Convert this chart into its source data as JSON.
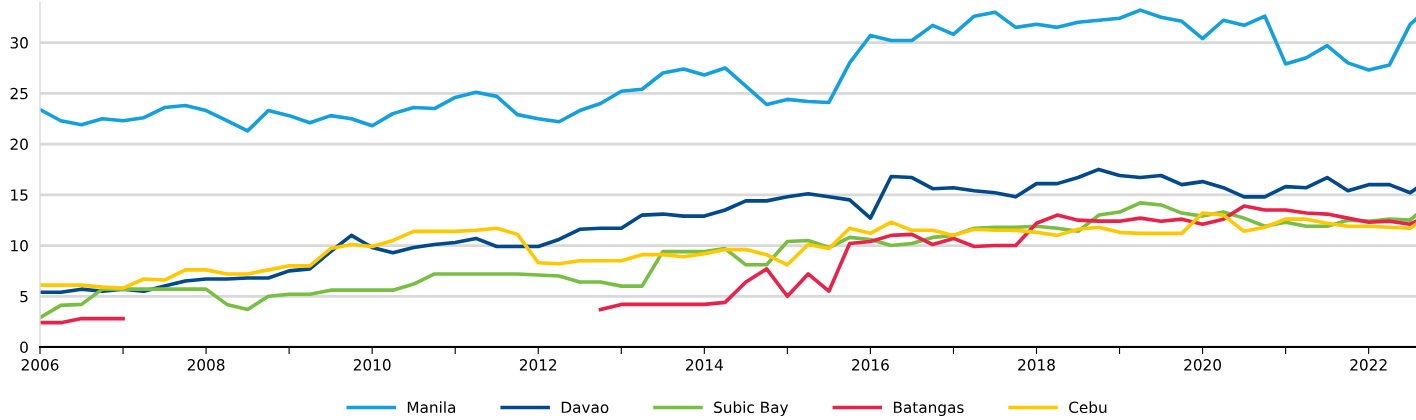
{
  "chart_data": {
    "type": "line",
    "x": [
      2006,
      2006.25,
      2006.5,
      2006.75,
      2007,
      2007.25,
      2007.5,
      2007.75,
      2008,
      2008.25,
      2008.5,
      2008.75,
      2009,
      2009.25,
      2009.5,
      2009.75,
      2010,
      2010.25,
      2010.5,
      2010.75,
      2011,
      2011.25,
      2011.5,
      2011.75,
      2012,
      2012.25,
      2012.5,
      2012.75,
      2013,
      2013.25,
      2013.5,
      2013.75,
      2014,
      2014.25,
      2014.5,
      2014.75,
      2015,
      2015.25,
      2015.5,
      2015.75,
      2016,
      2016.25,
      2016.5,
      2016.75,
      2017,
      2017.25,
      2017.5,
      2017.75,
      2018,
      2018.25,
      2018.5,
      2018.75,
      2019,
      2019.25,
      2019.5,
      2019.75,
      2020,
      2020.25,
      2020.5,
      2020.75,
      2021,
      2021.25,
      2021.5,
      2021.75,
      2022,
      2022.25,
      2022.5,
      2022.57
    ],
    "series": [
      {
        "name": "Manila",
        "color": "#14a0dc",
        "values": [
          23.4,
          22.3,
          21.9,
          22.5,
          22.3,
          22.6,
          23.6,
          23.8,
          23.3,
          22.3,
          21.3,
          23.3,
          22.8,
          22.1,
          22.8,
          22.5,
          21.8,
          23.0,
          23.6,
          23.5,
          24.6,
          25.1,
          24.7,
          22.9,
          22.5,
          22.2,
          23.3,
          24.0,
          25.2,
          25.4,
          27.0,
          27.4,
          26.8,
          27.5,
          25.7,
          23.9,
          24.4,
          24.2,
          24.1,
          28.0,
          30.7,
          30.2,
          30.2,
          31.7,
          30.8,
          32.6,
          33.0,
          31.5,
          31.8,
          31.5,
          32.0,
          32.2,
          32.4,
          33.2,
          32.5,
          32.1,
          30.4,
          32.2,
          31.7,
          32.6,
          27.9,
          28.5,
          29.7,
          28.0,
          27.3,
          27.8,
          31.8,
          32.3
        ]
      },
      {
        "name": "Davao",
        "color": "#00498c",
        "values": [
          5.4,
          5.4,
          5.7,
          5.5,
          5.7,
          5.5,
          6.0,
          6.5,
          6.7,
          6.7,
          6.8,
          6.8,
          7.5,
          7.7,
          9.4,
          11.0,
          9.8,
          9.3,
          9.8,
          10.1,
          10.3,
          10.7,
          9.9,
          9.9,
          9.9,
          10.6,
          11.6,
          11.7,
          11.7,
          13.0,
          13.1,
          12.9,
          12.9,
          13.5,
          14.4,
          14.4,
          14.8,
          15.1,
          14.8,
          14.5,
          12.7,
          16.8,
          16.7,
          15.6,
          15.7,
          15.4,
          15.2,
          14.8,
          16.1,
          16.1,
          16.7,
          17.5,
          16.9,
          16.7,
          16.9,
          16.0,
          16.3,
          15.7,
          14.8,
          14.8,
          15.8,
          15.7,
          16.7,
          15.4,
          16.0,
          16.0,
          15.2,
          15.6
        ]
      },
      {
        "name": "Subic Bay",
        "color": "#78be43",
        "values": [
          2.9,
          4.1,
          4.2,
          5.7,
          5.7,
          5.7,
          5.7,
          5.7,
          5.7,
          4.2,
          3.7,
          5.0,
          5.2,
          5.2,
          5.6,
          5.6,
          5.6,
          5.6,
          6.2,
          7.2,
          7.2,
          7.2,
          7.2,
          7.2,
          7.1,
          7.0,
          6.4,
          6.4,
          6.0,
          6.0,
          9.4,
          9.4,
          9.4,
          9.7,
          8.1,
          8.1,
          10.4,
          10.5,
          9.8,
          10.8,
          10.6,
          10.0,
          10.2,
          10.8,
          11.0,
          11.7,
          11.8,
          11.8,
          11.9,
          11.7,
          11.4,
          13.0,
          13.3,
          14.2,
          14.0,
          13.2,
          12.9,
          13.3,
          12.7,
          11.9,
          12.3,
          11.9,
          11.9,
          12.5,
          12.4,
          12.6,
          12.5,
          13.0
        ]
      },
      {
        "name": "Batangas",
        "color": "#e8234b",
        "values": [
          2.4,
          2.4,
          2.8,
          2.8,
          2.8,
          null,
          null,
          null,
          null,
          null,
          null,
          null,
          null,
          null,
          null,
          null,
          null,
          null,
          null,
          null,
          null,
          null,
          null,
          null,
          null,
          null,
          null,
          3.7,
          4.2,
          4.2,
          4.2,
          4.2,
          4.2,
          4.4,
          6.4,
          7.7,
          5.0,
          7.2,
          5.5,
          10.2,
          10.4,
          11.0,
          11.1,
          10.1,
          10.7,
          9.9,
          10.0,
          10.0,
          12.2,
          13.0,
          12.5,
          12.4,
          12.4,
          12.7,
          12.4,
          12.6,
          12.1,
          12.6,
          13.9,
          13.5,
          13.5,
          13.2,
          13.1,
          12.7,
          12.3,
          12.4,
          12.1,
          12.4
        ]
      },
      {
        "name": "Cebu",
        "color": "#ffc800",
        "values": [
          6.1,
          6.1,
          6.1,
          5.9,
          5.8,
          6.7,
          6.6,
          7.6,
          7.6,
          7.2,
          7.2,
          7.6,
          8.0,
          8.0,
          9.7,
          10.1,
          9.9,
          10.5,
          11.4,
          11.4,
          11.4,
          11.5,
          11.7,
          11.1,
          8.3,
          8.2,
          8.5,
          8.5,
          8.5,
          9.1,
          9.1,
          8.9,
          9.2,
          9.6,
          9.6,
          9.1,
          8.1,
          10.1,
          9.7,
          11.7,
          11.2,
          12.3,
          11.5,
          11.5,
          11.0,
          11.6,
          11.5,
          11.5,
          11.3,
          11.0,
          11.6,
          11.8,
          11.3,
          11.2,
          11.2,
          11.2,
          13.2,
          13.0,
          11.4,
          11.8,
          12.6,
          12.6,
          12.2,
          11.9,
          11.9,
          11.8,
          11.7,
          12.1
        ]
      }
    ],
    "xlim": [
      2006,
      2022.57
    ],
    "xticks": [
      2006,
      {
        "value": 2007,
        "label": null
      },
      2008,
      {
        "value": 2009,
        "label": null
      },
      2010,
      {
        "value": 2011,
        "label": null
      },
      2012,
      {
        "value": 2013,
        "label": null
      },
      2014,
      {
        "value": 2015,
        "label": null
      },
      2016,
      {
        "value": 2017,
        "label": null
      },
      2018,
      {
        "value": 2019,
        "label": null
      },
      2020,
      {
        "value": 2021,
        "label": null
      },
      2022
    ],
    "ylim": [
      0,
      34
    ],
    "yticks": [
      0,
      5,
      10,
      15,
      20,
      25,
      30
    ],
    "grid": "y",
    "legend": "bottom",
    "marker": "none",
    "line_style": "solid"
  }
}
